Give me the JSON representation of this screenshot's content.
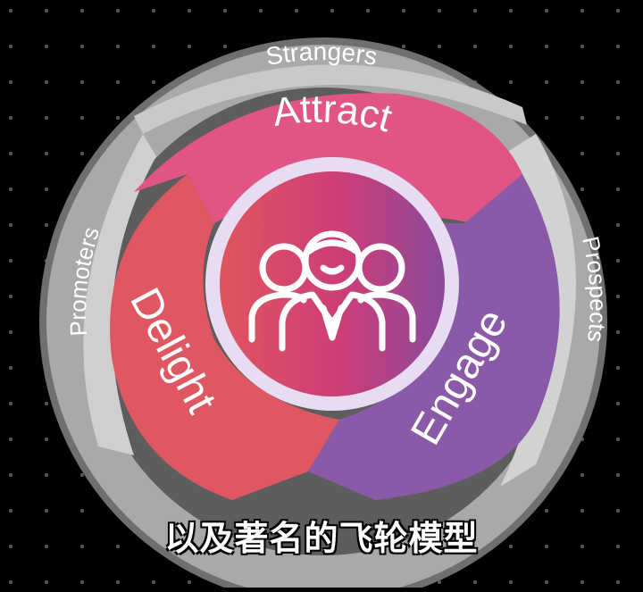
{
  "diagram": {
    "outer_ring": {
      "top_label": "Strangers",
      "right_label": "Prospects",
      "left_label": "Promoters"
    },
    "stages": [
      {
        "label": "Attract",
        "color": "#e05586"
      },
      {
        "label": "Engage",
        "color": "#8a5aa8"
      },
      {
        "label": "Delight",
        "color": "#de5762"
      }
    ],
    "center": {
      "icon": "people-group-icon",
      "gradient": [
        "#e0555f",
        "#cc3d78",
        "#8a4a9c"
      ]
    },
    "ring_color": "#a9a9a9",
    "background": "#000000"
  },
  "caption": {
    "text": "以及著名的飞轮模型"
  }
}
